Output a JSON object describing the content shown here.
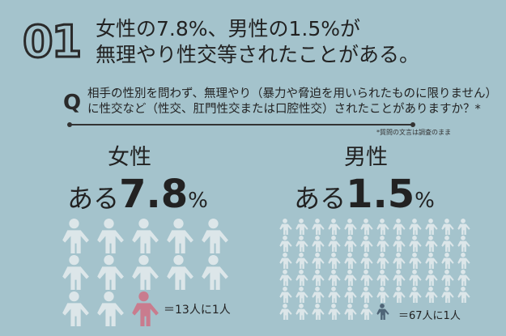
{
  "header": {
    "number": "01",
    "title_line1": "女性の7.8%、男性の1.5%が",
    "title_line2": "無理やり性交等されたことがある。"
  },
  "question": {
    "mark": "Q",
    "line1": "相手の性別を問わず、無理やり（暴力や脅迫を用いられたものに限りません）",
    "line2": "に性交など（性交、肛門性交または口腔性交）されたことがありますか？*",
    "note": "*質問の文言は調査のまま"
  },
  "female": {
    "label": "女性",
    "prefix": "ある",
    "value": "7.8",
    "unit": "%",
    "ratio": "＝13人に1人",
    "total": 13,
    "highlight": 1,
    "highlight_color": "#c97c8e"
  },
  "male": {
    "label": "男性",
    "prefix": "ある",
    "value": "1.5",
    "unit": "%",
    "ratio": "＝67人に1人",
    "total": 67,
    "highlight": 1,
    "highlight_color": "#4f6577"
  },
  "colors": {
    "background": "#a4c3cc",
    "figure": "#dce6e9"
  }
}
